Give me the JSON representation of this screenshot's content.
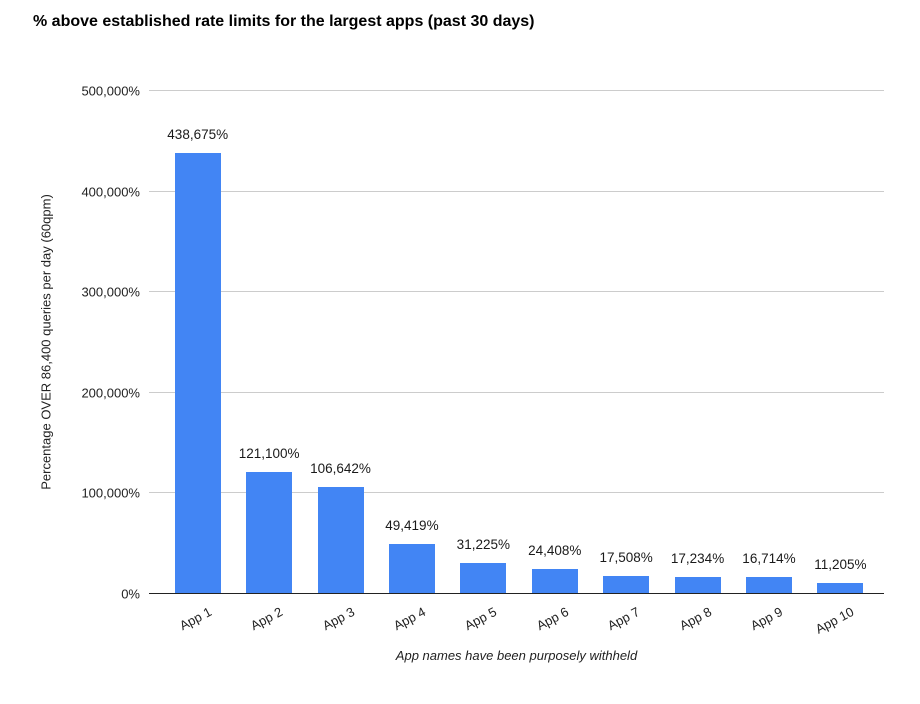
{
  "title": "% above established rate limits for the largest apps (past 30 days)",
  "colors": {
    "bar": "#4285f4",
    "gridline": "#cccccc",
    "baseline": "#222222",
    "text": "#222222"
  },
  "chart_data": {
    "type": "bar",
    "title": "% above established rate limits for the largest apps (past 30 days)",
    "categories": [
      "App 1",
      "App 2",
      "App 3",
      "App 4",
      "App 5",
      "App 6",
      "App 7",
      "App 8",
      "App 9",
      "App 10"
    ],
    "values": [
      438675,
      121100,
      106642,
      49419,
      31225,
      24408,
      17508,
      17234,
      16714,
      11205
    ],
    "value_labels": [
      "438,675%",
      "121,100%",
      "106,642%",
      "49,419%",
      "31,225%",
      "24,408%",
      "17,508%",
      "17,234%",
      "16,714%",
      "11,205%"
    ],
    "xlabel": "App names have been purposely withheld",
    "ylabel": "Percentage OVER 86,400 queries per day (60qpm)",
    "ylim": [
      0,
      500000
    ],
    "yticks": [
      0,
      100000,
      200000,
      300000,
      400000,
      500000
    ],
    "ytick_labels": [
      "0%",
      "100,000%",
      "200,000%",
      "300,000%",
      "400,000%",
      "500,000%"
    ],
    "grid": true,
    "legend": "none",
    "xtick_rotation_deg": -28
  }
}
